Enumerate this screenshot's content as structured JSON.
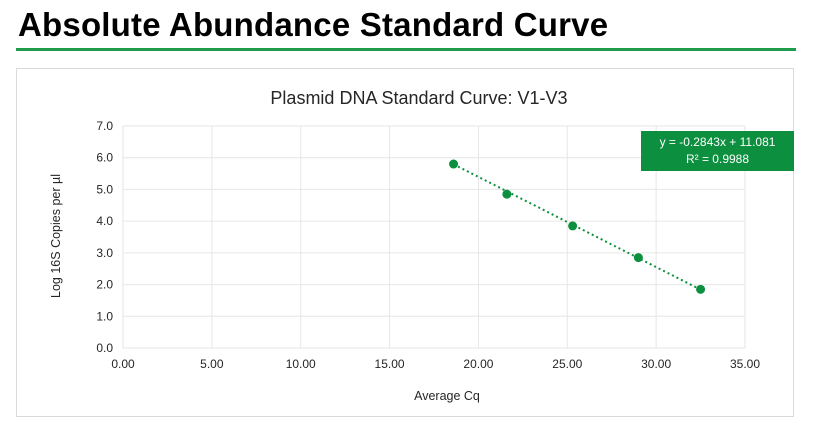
{
  "page": {
    "heading": "Absolute Abundance Standard Curve"
  },
  "colors": {
    "accent": "#1f9b4e",
    "marker": "#0c8f3e",
    "gridline": "#e6e6e6"
  },
  "chart_data": {
    "type": "scatter",
    "title": "Plasmid DNA Standard Curve: V1-V3",
    "xlabel": "Average Cq",
    "ylabel": "Log 16S Copies per µl",
    "xlim": [
      0,
      35
    ],
    "ylim": [
      0,
      7
    ],
    "x_ticks": [
      "0.00",
      "5.00",
      "10.00",
      "15.00",
      "20.00",
      "25.00",
      "30.00",
      "35.00"
    ],
    "y_ticks": [
      "0.0",
      "1.0",
      "2.0",
      "3.0",
      "4.0",
      "5.0",
      "6.0",
      "7.0"
    ],
    "grid": true,
    "series": [
      {
        "x": [
          18.6,
          21.6,
          25.3,
          29.0,
          32.5
        ],
        "y": [
          5.8,
          4.85,
          3.85,
          2.85,
          1.85
        ]
      }
    ],
    "trendline": {
      "type": "linear",
      "slope": -0.2843,
      "intercept": 11.081,
      "equation": "y = -0.2843x + 11.081",
      "r_squared": "R² = 0.9988"
    }
  }
}
